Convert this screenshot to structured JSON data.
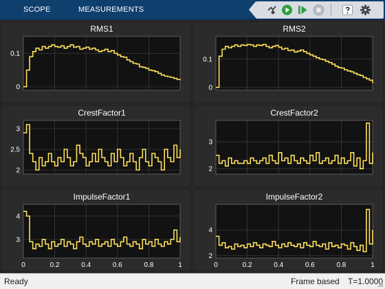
{
  "toolstrip": {
    "tabs": [
      {
        "label": "SCOPE"
      },
      {
        "label": "MEASUREMENTS"
      }
    ]
  },
  "toolbar": {
    "buttons": [
      {
        "icon": "signal-select-icon"
      },
      {
        "icon": "run-icon"
      },
      {
        "icon": "step-forward-icon"
      },
      {
        "icon": "stop-icon"
      },
      {
        "icon": "help-icon"
      },
      {
        "icon": "settings-icon"
      }
    ]
  },
  "colors": {
    "line": "#ffe15a",
    "axes_bg": "#121212",
    "panel_bg": "#2b2b2b",
    "grid": "#3a3a3a",
    "tick_text": "#ffffff"
  },
  "chart_data": [
    {
      "type": "line",
      "title": "RMS1",
      "xlim": [
        0,
        1
      ],
      "ylim": [
        -0.01,
        0.15
      ],
      "yticks": [
        0,
        0.1
      ],
      "yticklabels": [
        "0",
        "0.1"
      ],
      "xticks": [
        0,
        0.2,
        0.4,
        0.6,
        0.8,
        1
      ],
      "xticklabels": [],
      "series": [
        {
          "step": true,
          "x": [
            0,
            0.02,
            0.04,
            0.06,
            0.08,
            0.1,
            0.12,
            0.14,
            0.16,
            0.18,
            0.2,
            0.22,
            0.24,
            0.26,
            0.28,
            0.3,
            0.32,
            0.34,
            0.36,
            0.38,
            0.4,
            0.42,
            0.44,
            0.46,
            0.48,
            0.5,
            0.52,
            0.54,
            0.56,
            0.58,
            0.6,
            0.62,
            0.64,
            0.66,
            0.68,
            0.7,
            0.72,
            0.74,
            0.76,
            0.78,
            0.8,
            0.82,
            0.84,
            0.86,
            0.88,
            0.9,
            0.92,
            0.94,
            0.96,
            0.98,
            1.0
          ],
          "y": [
            0.0,
            0.05,
            0.09,
            0.105,
            0.115,
            0.11,
            0.12,
            0.115,
            0.12,
            0.125,
            0.12,
            0.118,
            0.122,
            0.115,
            0.12,
            0.125,
            0.118,
            0.12,
            0.112,
            0.115,
            0.118,
            0.112,
            0.115,
            0.11,
            0.105,
            0.108,
            0.112,
            0.105,
            0.108,
            0.1,
            0.095,
            0.09,
            0.088,
            0.08,
            0.075,
            0.07,
            0.068,
            0.06,
            0.058,
            0.055,
            0.05,
            0.048,
            0.045,
            0.04,
            0.035,
            0.032,
            0.03,
            0.028,
            0.025,
            0.022,
            0.02
          ]
        }
      ]
    },
    {
      "type": "line",
      "title": "RMS2",
      "xlim": [
        0,
        1
      ],
      "ylim": [
        -0.01,
        0.18
      ],
      "yticks": [
        0,
        0.1
      ],
      "yticklabels": [
        "0",
        "0.1"
      ],
      "xticks": [
        0,
        0.2,
        0.4,
        0.6,
        0.8,
        1
      ],
      "xticklabels": [],
      "series": [
        {
          "step": true,
          "x": [
            0,
            0.02,
            0.04,
            0.06,
            0.08,
            0.1,
            0.12,
            0.14,
            0.16,
            0.18,
            0.2,
            0.22,
            0.24,
            0.26,
            0.28,
            0.3,
            0.32,
            0.34,
            0.36,
            0.38,
            0.4,
            0.42,
            0.44,
            0.46,
            0.48,
            0.5,
            0.52,
            0.54,
            0.56,
            0.58,
            0.6,
            0.62,
            0.64,
            0.66,
            0.68,
            0.7,
            0.72,
            0.74,
            0.76,
            0.78,
            0.8,
            0.82,
            0.84,
            0.86,
            0.88,
            0.9,
            0.92,
            0.94,
            0.96,
            0.98,
            1.0
          ],
          "y": [
            0.0,
            0.11,
            0.135,
            0.145,
            0.14,
            0.145,
            0.15,
            0.145,
            0.15,
            0.148,
            0.152,
            0.15,
            0.145,
            0.15,
            0.148,
            0.152,
            0.145,
            0.14,
            0.145,
            0.148,
            0.142,
            0.135,
            0.138,
            0.13,
            0.132,
            0.125,
            0.128,
            0.132,
            0.126,
            0.12,
            0.115,
            0.11,
            0.105,
            0.1,
            0.098,
            0.092,
            0.088,
            0.082,
            0.075,
            0.07,
            0.068,
            0.062,
            0.058,
            0.055,
            0.05,
            0.045,
            0.042,
            0.035,
            0.03,
            0.025,
            0.015
          ]
        }
      ]
    },
    {
      "type": "line",
      "title": "CrestFactor1",
      "xlim": [
        0,
        1
      ],
      "ylim": [
        1.9,
        3.2
      ],
      "yticks": [
        2,
        2.5,
        3
      ],
      "yticklabels": [
        "2",
        "2.5",
        "3"
      ],
      "xticks": [
        0,
        0.2,
        0.4,
        0.6,
        0.8,
        1
      ],
      "xticklabels": [],
      "series": [
        {
          "step": true,
          "x": [
            0,
            0.02,
            0.04,
            0.06,
            0.08,
            0.1,
            0.12,
            0.14,
            0.16,
            0.18,
            0.2,
            0.22,
            0.24,
            0.26,
            0.28,
            0.3,
            0.32,
            0.34,
            0.36,
            0.38,
            0.4,
            0.42,
            0.44,
            0.46,
            0.48,
            0.5,
            0.52,
            0.54,
            0.56,
            0.58,
            0.6,
            0.62,
            0.64,
            0.66,
            0.68,
            0.7,
            0.72,
            0.74,
            0.76,
            0.78,
            0.8,
            0.82,
            0.84,
            0.86,
            0.88,
            0.9,
            0.92,
            0.94,
            0.96,
            0.98,
            1.0
          ],
          "y": [
            2.9,
            3.1,
            2.4,
            2.2,
            2.0,
            2.3,
            2.1,
            2.2,
            2.4,
            2.2,
            2.1,
            2.3,
            2.2,
            2.5,
            2.3,
            2.1,
            2.2,
            2.6,
            2.4,
            2.3,
            2.1,
            2.2,
            2.4,
            2.2,
            2.5,
            2.3,
            2.2,
            2.1,
            2.4,
            2.2,
            2.5,
            2.3,
            2.1,
            2.2,
            2.4,
            2.2,
            2.0,
            2.3,
            2.5,
            2.2,
            2.1,
            2.4,
            2.3,
            2.2,
            2.0,
            2.5,
            2.3,
            2.2,
            2.6,
            2.3,
            2.5
          ]
        }
      ]
    },
    {
      "type": "line",
      "title": "CrestFactor2",
      "xlim": [
        0,
        1
      ],
      "ylim": [
        1.8,
        3.8
      ],
      "yticks": [
        2,
        3
      ],
      "yticklabels": [
        "2",
        "3"
      ],
      "xticks": [
        0,
        0.2,
        0.4,
        0.6,
        0.8,
        1
      ],
      "xticklabels": [],
      "series": [
        {
          "step": true,
          "x": [
            0,
            0.02,
            0.04,
            0.06,
            0.08,
            0.1,
            0.12,
            0.14,
            0.16,
            0.18,
            0.2,
            0.22,
            0.24,
            0.26,
            0.28,
            0.3,
            0.32,
            0.34,
            0.36,
            0.38,
            0.4,
            0.42,
            0.44,
            0.46,
            0.48,
            0.5,
            0.52,
            0.54,
            0.56,
            0.58,
            0.6,
            0.62,
            0.64,
            0.66,
            0.68,
            0.7,
            0.72,
            0.74,
            0.76,
            0.78,
            0.8,
            0.82,
            0.84,
            0.86,
            0.88,
            0.9,
            0.92,
            0.94,
            0.96,
            0.98,
            1.0
          ],
          "y": [
            2.5,
            2.2,
            2.3,
            2.1,
            2.4,
            2.2,
            2.3,
            2.2,
            2.2,
            2.3,
            2.2,
            2.4,
            2.3,
            2.2,
            2.3,
            2.4,
            2.2,
            2.5,
            2.3,
            2.2,
            2.6,
            2.3,
            2.4,
            2.2,
            2.5,
            2.3,
            2.2,
            2.4,
            2.3,
            2.2,
            2.5,
            2.3,
            2.6,
            2.2,
            2.3,
            2.4,
            2.2,
            2.3,
            2.5,
            2.2,
            2.4,
            2.2,
            2.3,
            2.6,
            2.1,
            2.4,
            2.0,
            2.3,
            3.7,
            2.2,
            2.6
          ]
        }
      ]
    },
    {
      "type": "line",
      "title": "ImpulseFactor1",
      "xlim": [
        0,
        1
      ],
      "ylim": [
        2.2,
        4.5
      ],
      "yticks": [
        3,
        4
      ],
      "yticklabels": [
        "3",
        "4"
      ],
      "xticks": [
        0,
        0.2,
        0.4,
        0.6,
        0.8,
        1
      ],
      "xticklabels": [
        "0",
        "0.2",
        "0.4",
        "0.6",
        "0.8",
        "1"
      ],
      "series": [
        {
          "step": true,
          "x": [
            0,
            0.02,
            0.04,
            0.06,
            0.08,
            0.1,
            0.12,
            0.14,
            0.16,
            0.18,
            0.2,
            0.22,
            0.24,
            0.26,
            0.28,
            0.3,
            0.32,
            0.34,
            0.36,
            0.38,
            0.4,
            0.42,
            0.44,
            0.46,
            0.48,
            0.5,
            0.52,
            0.54,
            0.56,
            0.58,
            0.6,
            0.62,
            0.64,
            0.66,
            0.68,
            0.7,
            0.72,
            0.74,
            0.76,
            0.78,
            0.8,
            0.82,
            0.84,
            0.86,
            0.88,
            0.9,
            0.92,
            0.94,
            0.96,
            0.98,
            1.0
          ],
          "y": [
            4.2,
            4.0,
            2.9,
            2.6,
            2.8,
            2.7,
            3.0,
            2.8,
            2.6,
            2.9,
            2.7,
            2.8,
            3.0,
            2.7,
            2.9,
            2.8,
            2.6,
            2.9,
            3.1,
            2.8,
            2.7,
            2.9,
            2.8,
            3.0,
            2.7,
            2.8,
            2.9,
            2.7,
            3.0,
            2.8,
            2.7,
            2.9,
            3.1,
            2.8,
            2.7,
            2.9,
            2.8,
            2.6,
            3.0,
            2.8,
            2.9,
            2.7,
            3.0,
            2.8,
            2.7,
            2.9,
            2.8,
            3.0,
            3.4,
            2.9,
            3.1
          ]
        }
      ]
    },
    {
      "type": "line",
      "title": "ImpulseFactor2",
      "xlim": [
        0,
        1
      ],
      "ylim": [
        1.8,
        6.0
      ],
      "yticks": [
        2,
        4
      ],
      "yticklabels": [
        "2",
        "4"
      ],
      "xticks": [
        0,
        0.2,
        0.4,
        0.6,
        0.8,
        1
      ],
      "xticklabels": [
        "0",
        "0.2",
        "0.4",
        "0.6",
        "0.8",
        "1"
      ],
      "series": [
        {
          "step": true,
          "x": [
            0,
            0.02,
            0.04,
            0.06,
            0.08,
            0.1,
            0.12,
            0.14,
            0.16,
            0.18,
            0.2,
            0.22,
            0.24,
            0.26,
            0.28,
            0.3,
            0.32,
            0.34,
            0.36,
            0.38,
            0.4,
            0.42,
            0.44,
            0.46,
            0.48,
            0.5,
            0.52,
            0.54,
            0.56,
            0.58,
            0.6,
            0.62,
            0.64,
            0.66,
            0.68,
            0.7,
            0.72,
            0.74,
            0.76,
            0.78,
            0.8,
            0.82,
            0.84,
            0.86,
            0.88,
            0.9,
            0.92,
            0.94,
            0.96,
            0.98,
            1.0
          ],
          "y": [
            3.5,
            2.8,
            3.0,
            2.6,
            2.7,
            2.5,
            2.9,
            2.7,
            2.8,
            2.6,
            2.9,
            2.7,
            3.0,
            2.8,
            2.6,
            2.9,
            2.8,
            2.7,
            3.1,
            2.8,
            2.6,
            2.9,
            2.7,
            3.0,
            2.8,
            2.7,
            2.9,
            2.6,
            3.0,
            2.8,
            2.7,
            3.1,
            2.8,
            2.7,
            2.9,
            2.5,
            3.0,
            2.7,
            2.8,
            2.6,
            2.9,
            2.8,
            2.5,
            3.0,
            2.7,
            2.4,
            2.8,
            2.3,
            5.6,
            2.9,
            4.0
          ]
        }
      ]
    }
  ],
  "statusbar": {
    "ready": "Ready",
    "mode": "Frame based",
    "time": "T=1.0000"
  }
}
